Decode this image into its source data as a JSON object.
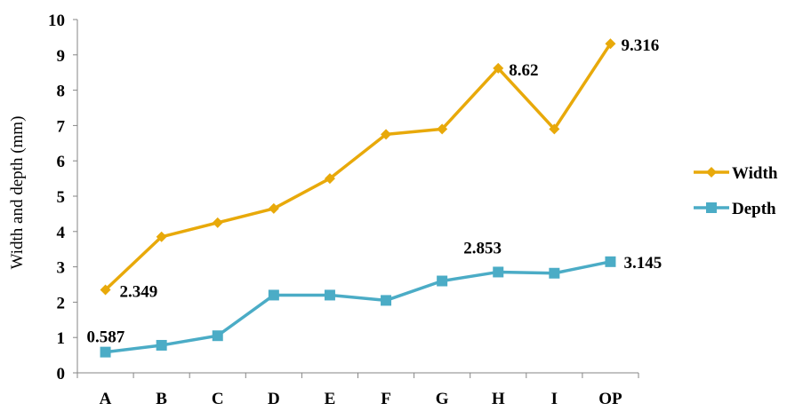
{
  "chart_data": {
    "type": "line",
    "title": "",
    "xlabel": "",
    "ylabel": "Width and depth (mm)",
    "categories": [
      "A",
      "B",
      "C",
      "D",
      "E",
      "F",
      "G",
      "H",
      "I",
      "OP"
    ],
    "ylim": [
      0,
      10
    ],
    "yticks": [
      "0",
      "1",
      "2",
      "3",
      "4",
      "5",
      "6",
      "7",
      "8",
      "9",
      "10"
    ],
    "grid": false,
    "legend_position": "right",
    "series": [
      {
        "name": "Width",
        "color": "#E8A90A",
        "marker": "diamond",
        "values": [
          2.349,
          3.85,
          4.25,
          4.65,
          5.5,
          6.75,
          6.9,
          8.62,
          6.9,
          9.316
        ]
      },
      {
        "name": "Depth",
        "color": "#4BACC6",
        "marker": "square",
        "values": [
          0.587,
          0.78,
          1.05,
          2.2,
          2.2,
          2.05,
          2.6,
          2.853,
          2.82,
          3.145
        ]
      }
    ],
    "data_labels": [
      {
        "series": 0,
        "index": 0,
        "text": "2.349"
      },
      {
        "series": 0,
        "index": 7,
        "text": "8.62"
      },
      {
        "series": 0,
        "index": 9,
        "text": "9.316"
      },
      {
        "series": 1,
        "index": 0,
        "text": "0.587"
      },
      {
        "series": 1,
        "index": 7,
        "text": "2.853"
      },
      {
        "series": 1,
        "index": 9,
        "text": "3.145"
      }
    ]
  }
}
